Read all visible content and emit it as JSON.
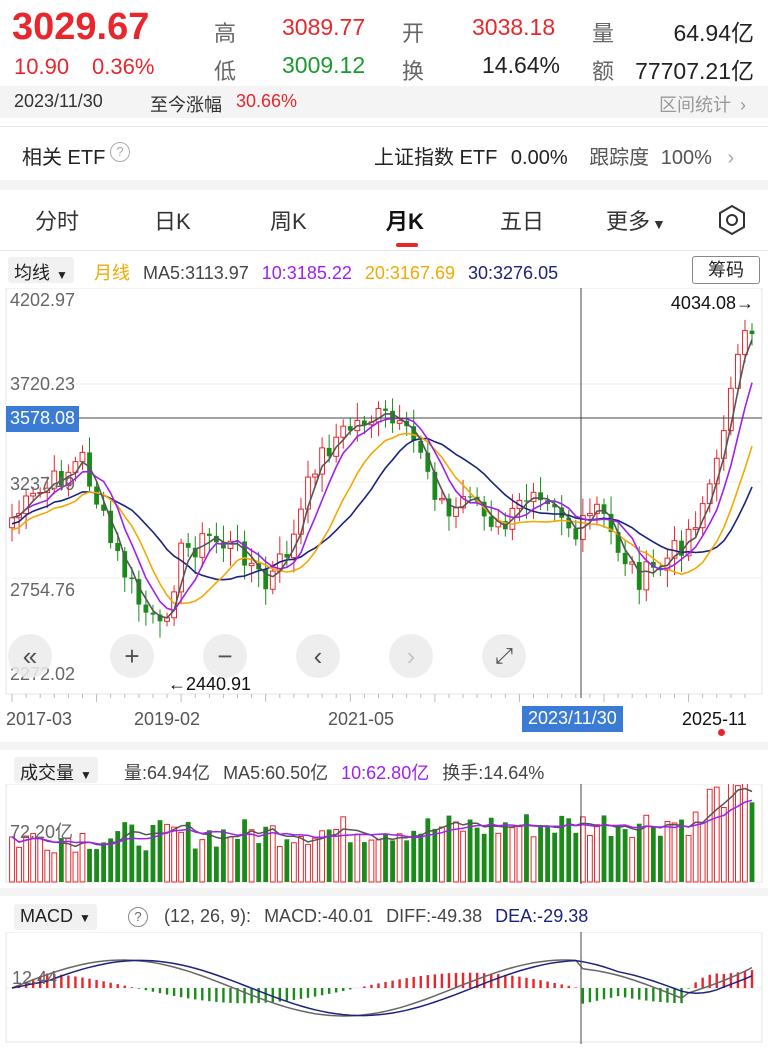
{
  "quote": {
    "price": "3029.67",
    "change": "10.90",
    "change_pct": "0.36%",
    "high_label": "高",
    "high": "3089.77",
    "open_label": "开",
    "open": "3038.18",
    "volume_label": "量",
    "volume": "64.94亿",
    "low_label": "低",
    "low": "3009.12",
    "turnover_label": "换",
    "turnover": "14.64%",
    "amount_label": "额",
    "amount": "77707.21亿"
  },
  "period_bar": {
    "date": "2023/11/30",
    "gain_label": "至今涨幅",
    "gain_value": "30.66%",
    "range_stats": "区间统计"
  },
  "etf_bar": {
    "label": "相关 ETF",
    "name": "上证指数 ETF",
    "change": "0.00%",
    "tracking_label": "跟踪度",
    "tracking_value": "100%"
  },
  "tabs": [
    {
      "label": "分时"
    },
    {
      "label": "日K"
    },
    {
      "label": "周K"
    },
    {
      "label": "月K",
      "active": true
    },
    {
      "label": "五日"
    },
    {
      "label": "更多"
    }
  ],
  "ma_legend": {
    "selector": "均线",
    "period": "月线",
    "ma5": "MA5:3113.97",
    "ma10": "10:3185.22",
    "ma20": "20:3167.69",
    "ma30": "30:3276.05",
    "chips_button": "筹码",
    "colors": {
      "ma5": "#555555",
      "ma10": "#a020f0",
      "ma20": "#f2a900",
      "ma30": "#1a237e",
      "up": "#e8262c",
      "down": "#1a8a1a"
    }
  },
  "price_axis": {
    "labels": [
      "4202.97",
      "3720.23",
      "3237.49",
      "2754.76",
      "2272.02"
    ],
    "cursor_value": "3578.08",
    "max_marker": "4034.08→",
    "min_marker": "←2440.91"
  },
  "time_axis": {
    "labels": [
      "2017-03",
      "2019-02",
      "2021-05",
      "2025-11"
    ],
    "cursor_label": "2023/11/30"
  },
  "controls": [
    {
      "name": "collapse-left",
      "glyph": "«"
    },
    {
      "name": "zoom-in",
      "glyph": "+"
    },
    {
      "name": "zoom-out",
      "glyph": "−"
    },
    {
      "name": "scroll-left",
      "glyph": "‹"
    },
    {
      "name": "scroll-right",
      "glyph": "›"
    },
    {
      "name": "fullscreen",
      "glyph": "⤢"
    }
  ],
  "volume_panel": {
    "selector": "成交量",
    "vol": "量:64.94亿",
    "ma5": "MA5:60.50亿",
    "ma10": "10:62.80亿",
    "turnover": "换手:14.64%",
    "axis_label": "72.20亿"
  },
  "macd_panel": {
    "selector": "MACD",
    "params": "(12, 26, 9):",
    "macd": "MACD:-40.01",
    "diff": "DIFF:-49.38",
    "dea": "DEA:-29.38",
    "axis_label": "12.44"
  }
}
